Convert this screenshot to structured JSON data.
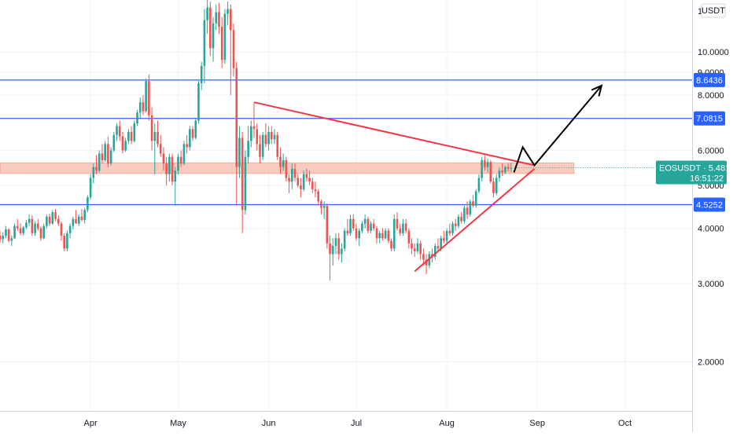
{
  "chart_data": {
    "type": "candlestick",
    "symbol_label": "EOSUSDT",
    "currency_label": "USDT",
    "last_price": "5.4815",
    "countdown": "16:51:22",
    "y_axis": {
      "scale": "log",
      "range": [
        1.55,
        13.1
      ],
      "ticks": [
        "10.0000",
        "9.0000",
        "8.0000",
        "6.0000",
        "5.0000",
        "4.0000",
        "3.0000",
        "2.0000"
      ],
      "top_partial_tick": "1"
    },
    "x_axis": {
      "range": [
        "2021-03-01",
        "2021-10-24"
      ],
      "ticks": [
        {
          "date": "2021-04-01",
          "label": "Apr"
        },
        {
          "date": "2021-05-01",
          "label": "May"
        },
        {
          "date": "2021-06-01",
          "label": "Jun"
        },
        {
          "date": "2021-07-01",
          "label": "Jul"
        },
        {
          "date": "2021-08-01",
          "label": "Aug"
        },
        {
          "date": "2021-09-01",
          "label": "Sep"
        },
        {
          "date": "2021-10-01",
          "label": "Oct"
        }
      ]
    },
    "horizontal_levels": [
      {
        "value": 8.6436,
        "label": "8.6436",
        "color": "#2962ff"
      },
      {
        "value": 7.0815,
        "label": "7.0815",
        "color": "#2962ff"
      },
      {
        "value": 4.5252,
        "label": "4.5252",
        "color": "#2962ff"
      }
    ],
    "zone": {
      "from": 5.32,
      "to": 5.62,
      "color": "#f7a08a"
    },
    "trendlines": [
      {
        "from": {
          "date": "2021-05-27",
          "value": 7.7
        },
        "to": {
          "date": "2021-08-31",
          "value": 5.55
        },
        "color": "#f23645"
      },
      {
        "from": {
          "date": "2021-07-21",
          "value": 3.2
        },
        "to": {
          "date": "2021-08-31",
          "value": 5.45
        },
        "color": "#f23645"
      }
    ],
    "projection_path": {
      "color": "#000000",
      "points": [
        {
          "date": "2021-08-24",
          "value": 5.35
        },
        {
          "date": "2021-08-27",
          "value": 6.1
        },
        {
          "date": "2021-08-31",
          "value": 5.55
        },
        {
          "date": "2021-09-23",
          "value": 8.4
        }
      ]
    },
    "candles": [
      [
        "2021-03-01",
        3.85,
        3.95,
        3.72,
        3.78
      ],
      [
        "2021-03-02",
        3.78,
        3.92,
        3.7,
        3.85
      ],
      [
        "2021-03-03",
        3.85,
        4.05,
        3.8,
        3.98
      ],
      [
        "2021-03-04",
        3.98,
        4.0,
        3.72,
        3.75
      ],
      [
        "2021-03-05",
        3.75,
        3.86,
        3.65,
        3.8
      ],
      [
        "2021-03-06",
        3.8,
        4.1,
        3.78,
        4.05
      ],
      [
        "2021-03-07",
        4.05,
        4.2,
        3.95,
        4.0
      ],
      [
        "2021-03-08",
        4.0,
        4.1,
        3.86,
        3.9
      ],
      [
        "2021-03-09",
        3.9,
        4.05,
        3.85,
        4.02
      ],
      [
        "2021-03-10",
        4.02,
        4.18,
        3.98,
        4.12
      ],
      [
        "2021-03-11",
        4.12,
        4.3,
        4.05,
        4.2
      ],
      [
        "2021-03-12",
        4.2,
        4.28,
        3.85,
        3.9
      ],
      [
        "2021-03-13",
        3.9,
        4.15,
        3.85,
        4.1
      ],
      [
        "2021-03-14",
        4.1,
        4.2,
        3.95,
        4.0
      ],
      [
        "2021-03-15",
        4.0,
        4.05,
        3.75,
        3.8
      ],
      [
        "2021-03-16",
        3.8,
        4.1,
        3.78,
        4.05
      ],
      [
        "2021-03-17",
        4.05,
        4.3,
        4.0,
        4.25
      ],
      [
        "2021-03-18",
        4.25,
        4.32,
        4.05,
        4.1
      ],
      [
        "2021-03-19",
        4.1,
        4.4,
        4.08,
        4.35
      ],
      [
        "2021-03-20",
        4.35,
        4.42,
        4.15,
        4.2
      ],
      [
        "2021-03-21",
        4.2,
        4.28,
        4.05,
        4.1
      ],
      [
        "2021-03-22",
        4.1,
        4.15,
        3.75,
        3.85
      ],
      [
        "2021-03-23",
        3.85,
        3.9,
        3.55,
        3.6
      ],
      [
        "2021-03-24",
        3.6,
        3.95,
        3.55,
        3.9
      ],
      [
        "2021-03-25",
        3.9,
        4.1,
        3.8,
        4.05
      ],
      [
        "2021-03-26",
        4.05,
        4.25,
        3.98,
        4.2
      ],
      [
        "2021-03-27",
        4.2,
        4.4,
        4.1,
        4.1
      ],
      [
        "2021-03-28",
        4.1,
        4.3,
        4.05,
        4.25
      ],
      [
        "2021-03-29",
        4.25,
        4.42,
        4.15,
        4.18
      ],
      [
        "2021-03-30",
        4.18,
        4.45,
        4.1,
        4.4
      ],
      [
        "2021-03-31",
        4.4,
        4.75,
        4.35,
        4.7
      ],
      [
        "2021-04-01",
        4.7,
        5.3,
        4.65,
        5.2
      ],
      [
        "2021-04-02",
        5.2,
        5.6,
        5.05,
        5.5
      ],
      [
        "2021-04-03",
        5.5,
        5.85,
        5.3,
        5.4
      ],
      [
        "2021-04-04",
        5.4,
        6.0,
        5.35,
        5.9
      ],
      [
        "2021-04-05",
        5.9,
        6.2,
        5.6,
        5.7
      ],
      [
        "2021-04-06",
        5.7,
        6.3,
        5.65,
        6.2
      ],
      [
        "2021-04-07",
        6.2,
        6.45,
        5.5,
        5.6
      ],
      [
        "2021-04-08",
        5.6,
        6.1,
        5.55,
        6.0
      ],
      [
        "2021-04-09",
        6.0,
        6.6,
        5.95,
        6.5
      ],
      [
        "2021-04-10",
        6.5,
        6.9,
        6.3,
        6.8
      ],
      [
        "2021-04-11",
        6.8,
        7.0,
        6.3,
        6.45
      ],
      [
        "2021-04-12",
        6.45,
        6.6,
        5.9,
        6.0
      ],
      [
        "2021-04-13",
        6.0,
        6.4,
        5.95,
        6.3
      ],
      [
        "2021-04-14",
        6.3,
        6.7,
        6.2,
        6.6
      ],
      [
        "2021-04-15",
        6.6,
        6.8,
        6.2,
        6.3
      ],
      [
        "2021-04-16",
        6.3,
        7.0,
        6.25,
        6.9
      ],
      [
        "2021-04-17",
        6.9,
        7.4,
        6.8,
        7.3
      ],
      [
        "2021-04-18",
        7.3,
        7.9,
        7.1,
        7.7
      ],
      [
        "2021-04-19",
        7.7,
        8.0,
        7.2,
        7.35
      ],
      [
        "2021-04-20",
        7.35,
        8.7,
        7.3,
        8.6
      ],
      [
        "2021-04-21",
        8.6,
        8.9,
        7.0,
        7.2
      ],
      [
        "2021-04-22",
        7.2,
        7.5,
        6.0,
        6.3
      ],
      [
        "2021-04-23",
        6.3,
        6.9,
        5.3,
        6.6
      ],
      [
        "2021-04-24",
        6.6,
        7.0,
        6.1,
        6.2
      ],
      [
        "2021-04-25",
        6.2,
        6.5,
        5.8,
        5.9
      ],
      [
        "2021-04-26",
        5.9,
        6.1,
        5.4,
        5.6
      ],
      [
        "2021-04-27",
        5.6,
        5.8,
        5.0,
        5.3
      ],
      [
        "2021-04-28",
        5.3,
        5.9,
        5.1,
        5.8
      ],
      [
        "2021-04-29",
        5.8,
        5.9,
        5.0,
        5.1
      ],
      [
        "2021-04-30",
        5.1,
        5.5,
        4.5,
        5.4
      ],
      [
        "2021-05-01",
        5.4,
        5.9,
        5.3,
        5.8
      ],
      [
        "2021-05-02",
        5.8,
        6.0,
        5.5,
        5.6
      ],
      [
        "2021-05-03",
        5.6,
        6.3,
        5.55,
        6.2
      ],
      [
        "2021-05-04",
        6.2,
        6.5,
        5.9,
        6.1
      ],
      [
        "2021-05-05",
        6.1,
        6.8,
        6.0,
        6.7
      ],
      [
        "2021-05-06",
        6.7,
        6.8,
        6.3,
        6.4
      ],
      [
        "2021-05-07",
        6.4,
        7.1,
        6.35,
        7.0
      ],
      [
        "2021-05-08",
        7.0,
        8.6,
        6.9,
        8.5
      ],
      [
        "2021-05-09",
        8.5,
        9.5,
        8.2,
        9.3
      ],
      [
        "2021-05-10",
        9.3,
        12.5,
        8.5,
        11.8
      ],
      [
        "2021-05-11",
        11.8,
        13.2,
        11.0,
        12.6
      ],
      [
        "2021-05-12",
        12.6,
        13.0,
        9.8,
        10.2
      ],
      [
        "2021-05-13",
        10.2,
        12.0,
        9.5,
        11.6
      ],
      [
        "2021-05-14",
        11.6,
        12.8,
        11.2,
        12.3
      ],
      [
        "2021-05-15",
        12.3,
        12.9,
        11.0,
        11.4
      ],
      [
        "2021-05-16",
        11.4,
        12.0,
        9.2,
        9.6
      ],
      [
        "2021-05-17",
        9.6,
        12.5,
        9.4,
        12.2
      ],
      [
        "2021-05-18",
        12.2,
        13.0,
        11.5,
        12.5
      ],
      [
        "2021-05-19",
        12.5,
        12.8,
        8.0,
        11.2
      ],
      [
        "2021-05-20",
        11.2,
        11.6,
        8.8,
        9.2
      ],
      [
        "2021-05-21",
        9.2,
        9.5,
        4.5,
        5.5
      ],
      [
        "2021-05-22",
        5.5,
        6.8,
        5.2,
        6.4
      ],
      [
        "2021-05-23",
        6.4,
        6.6,
        3.9,
        4.4
      ],
      [
        "2021-05-24",
        4.4,
        6.0,
        4.3,
        5.8
      ],
      [
        "2021-05-25",
        5.8,
        6.8,
        5.6,
        6.3
      ],
      [
        "2021-05-26",
        6.3,
        7.0,
        6.1,
        6.8
      ],
      [
        "2021-05-27",
        6.8,
        7.7,
        6.4,
        6.7
      ],
      [
        "2021-05-28",
        6.7,
        6.9,
        6.0,
        6.2
      ],
      [
        "2021-05-29",
        6.2,
        6.5,
        5.6,
        5.8
      ],
      [
        "2021-05-30",
        5.8,
        6.6,
        5.7,
        6.5
      ],
      [
        "2021-05-31",
        6.5,
        6.9,
        6.1,
        6.2
      ],
      [
        "2021-06-01",
        6.2,
        6.8,
        6.0,
        6.6
      ],
      [
        "2021-06-02",
        6.6,
        6.8,
        6.2,
        6.35
      ],
      [
        "2021-06-03",
        6.35,
        6.7,
        6.2,
        6.5
      ],
      [
        "2021-06-04",
        6.5,
        6.6,
        5.7,
        5.8
      ],
      [
        "2021-06-05",
        5.8,
        6.1,
        5.3,
        5.5
      ],
      [
        "2021-06-06",
        5.5,
        5.9,
        5.4,
        5.7
      ],
      [
        "2021-06-07",
        5.7,
        5.8,
        5.1,
        5.2
      ],
      [
        "2021-06-08",
        5.2,
        5.3,
        4.8,
        5.1
      ],
      [
        "2021-06-09",
        5.1,
        5.6,
        4.9,
        5.45
      ],
      [
        "2021-06-10",
        5.45,
        5.6,
        5.1,
        5.2
      ],
      [
        "2021-06-11",
        5.2,
        5.3,
        4.95,
        5.0
      ],
      [
        "2021-06-12",
        5.0,
        5.2,
        4.7,
        4.9
      ],
      [
        "2021-06-13",
        4.9,
        5.4,
        4.85,
        5.3
      ],
      [
        "2021-06-14",
        5.3,
        5.45,
        5.1,
        5.2
      ],
      [
        "2021-06-15",
        5.2,
        5.4,
        5.0,
        5.1
      ],
      [
        "2021-06-16",
        5.1,
        5.2,
        4.8,
        4.9
      ],
      [
        "2021-06-17",
        4.9,
        5.1,
        4.7,
        4.85
      ],
      [
        "2021-06-18",
        4.85,
        4.9,
        4.5,
        4.6
      ],
      [
        "2021-06-19",
        4.6,
        4.65,
        4.3,
        4.45
      ],
      [
        "2021-06-20",
        4.45,
        4.6,
        4.2,
        4.5
      ],
      [
        "2021-06-21",
        4.5,
        4.55,
        3.6,
        3.7
      ],
      [
        "2021-06-22",
        3.7,
        3.85,
        3.05,
        3.5
      ],
      [
        "2021-06-23",
        3.5,
        3.8,
        3.3,
        3.65
      ],
      [
        "2021-06-24",
        3.65,
        3.9,
        3.5,
        3.8
      ],
      [
        "2021-06-25",
        3.8,
        3.9,
        3.4,
        3.5
      ],
      [
        "2021-06-26",
        3.5,
        3.7,
        3.35,
        3.6
      ],
      [
        "2021-06-27",
        3.6,
        4.0,
        3.55,
        3.95
      ],
      [
        "2021-06-28",
        3.95,
        4.2,
        3.85,
        3.9
      ],
      [
        "2021-06-29",
        3.9,
        4.3,
        3.85,
        4.2
      ],
      [
        "2021-06-30",
        4.2,
        4.3,
        3.95,
        4.0
      ],
      [
        "2021-07-01",
        4.0,
        4.1,
        3.75,
        3.8
      ],
      [
        "2021-07-02",
        3.8,
        4.0,
        3.65,
        3.95
      ],
      [
        "2021-07-03",
        3.95,
        4.15,
        3.9,
        4.1
      ],
      [
        "2021-07-04",
        4.1,
        4.3,
        4.0,
        4.2
      ],
      [
        "2021-07-05",
        4.2,
        4.25,
        3.9,
        3.95
      ],
      [
        "2021-07-06",
        3.95,
        4.15,
        3.9,
        4.1
      ],
      [
        "2021-07-07",
        4.1,
        4.2,
        3.95,
        4.0
      ],
      [
        "2021-07-08",
        4.0,
        4.05,
        3.7,
        3.8
      ],
      [
        "2021-07-09",
        3.8,
        3.95,
        3.7,
        3.9
      ],
      [
        "2021-07-10",
        3.9,
        4.0,
        3.75,
        3.8
      ],
      [
        "2021-07-11",
        3.8,
        4.0,
        3.78,
        3.95
      ],
      [
        "2021-07-12",
        3.95,
        4.0,
        3.7,
        3.75
      ],
      [
        "2021-07-13",
        3.75,
        3.8,
        3.55,
        3.6
      ],
      [
        "2021-07-14",
        3.6,
        4.3,
        3.55,
        4.2
      ],
      [
        "2021-07-15",
        4.2,
        4.35,
        3.95,
        4.0
      ],
      [
        "2021-07-16",
        4.0,
        4.1,
        3.85,
        3.9
      ],
      [
        "2021-07-17",
        3.9,
        4.2,
        3.85,
        4.1
      ],
      [
        "2021-07-18",
        4.1,
        4.2,
        3.9,
        3.95
      ],
      [
        "2021-07-19",
        3.95,
        4.0,
        3.6,
        3.7
      ],
      [
        "2021-07-20",
        3.7,
        3.8,
        3.5,
        3.6
      ],
      [
        "2021-07-21",
        3.6,
        3.7,
        3.45,
        3.55
      ],
      [
        "2021-07-22",
        3.55,
        3.8,
        3.5,
        3.7
      ],
      [
        "2021-07-23",
        3.7,
        3.75,
        3.4,
        3.5
      ],
      [
        "2021-07-24",
        3.5,
        3.6,
        3.3,
        3.4
      ],
      [
        "2021-07-25",
        3.4,
        3.5,
        3.15,
        3.3
      ],
      [
        "2021-07-26",
        3.3,
        3.55,
        3.25,
        3.5
      ],
      [
        "2021-07-27",
        3.5,
        3.6,
        3.35,
        3.45
      ],
      [
        "2021-07-28",
        3.45,
        3.7,
        3.4,
        3.65
      ],
      [
        "2021-07-29",
        3.65,
        3.8,
        3.55,
        3.6
      ],
      [
        "2021-07-30",
        3.6,
        3.85,
        3.55,
        3.8
      ],
      [
        "2021-07-31",
        3.8,
        3.95,
        3.7,
        3.75
      ],
      [
        "2021-08-01",
        3.75,
        4.0,
        3.7,
        3.95
      ],
      [
        "2021-08-02",
        3.95,
        4.1,
        3.85,
        3.9
      ],
      [
        "2021-08-03",
        3.9,
        4.15,
        3.85,
        4.1
      ],
      [
        "2021-08-04",
        4.1,
        4.2,
        3.95,
        4.05
      ],
      [
        "2021-08-05",
        4.05,
        4.3,
        4.0,
        4.25
      ],
      [
        "2021-08-06",
        4.25,
        4.35,
        4.1,
        4.15
      ],
      [
        "2021-08-07",
        4.15,
        4.5,
        4.1,
        4.45
      ],
      [
        "2021-08-08",
        4.45,
        4.6,
        4.2,
        4.3
      ],
      [
        "2021-08-09",
        4.3,
        4.65,
        4.25,
        4.6
      ],
      [
        "2021-08-10",
        4.6,
        4.75,
        4.45,
        4.5
      ],
      [
        "2021-08-11",
        4.5,
        4.9,
        4.45,
        4.85
      ],
      [
        "2021-08-12",
        4.85,
        5.3,
        4.8,
        5.2
      ],
      [
        "2021-08-13",
        5.2,
        5.8,
        5.1,
        5.7
      ],
      [
        "2021-08-14",
        5.7,
        5.85,
        5.4,
        5.5
      ],
      [
        "2021-08-15",
        5.5,
        5.75,
        5.35,
        5.65
      ],
      [
        "2021-08-16",
        5.65,
        5.7,
        5.05,
        5.1
      ],
      [
        "2021-08-17",
        5.1,
        5.2,
        4.7,
        4.8
      ],
      [
        "2021-08-18",
        4.8,
        5.3,
        4.75,
        5.2
      ],
      [
        "2021-08-19",
        5.2,
        5.5,
        5.1,
        5.4
      ],
      [
        "2021-08-20",
        5.4,
        5.6,
        5.25,
        5.35
      ],
      [
        "2021-08-21",
        5.35,
        5.55,
        5.3,
        5.5
      ],
      [
        "2021-08-22",
        5.5,
        5.6,
        5.38,
        5.45
      ],
      [
        "2021-08-23",
        5.45,
        5.62,
        5.35,
        5.48
      ]
    ]
  }
}
